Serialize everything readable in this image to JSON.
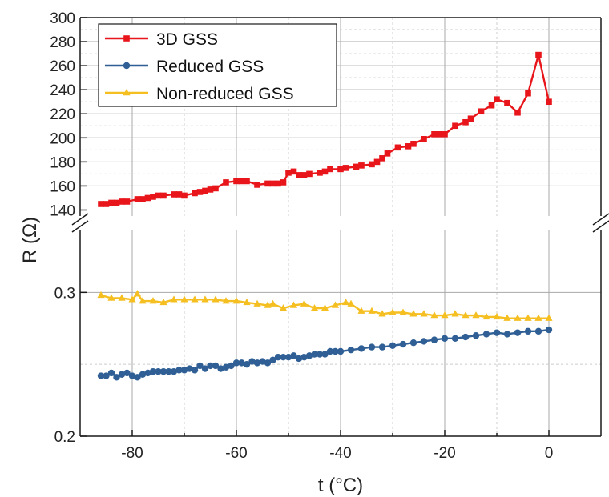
{
  "chart_data": {
    "type": "line",
    "xlabel": "t (°C)",
    "ylabel": "R (Ω)",
    "xlim": [
      -90,
      10
    ],
    "x_ticks": [
      -80,
      -60,
      -40,
      -20,
      0
    ],
    "broken_y_axis": true,
    "upper_ylim": [
      135,
      300
    ],
    "upper_y_ticks": [
      140,
      160,
      180,
      200,
      220,
      240,
      260,
      280,
      300
    ],
    "lower_ylim": [
      0.2,
      0.3436
    ],
    "lower_y_ticks": [
      0.2,
      0.3
    ],
    "grid": true,
    "legend_position": "top-left",
    "series": [
      {
        "name": "3D GSS",
        "color": "#e8161b",
        "marker": "square",
        "panel": "upper",
        "x": [
          -86,
          -85,
          -84,
          -83,
          -82,
          -81,
          -79,
          -78,
          -77,
          -76,
          -75,
          -74,
          -72,
          -71,
          -70,
          -68,
          -67,
          -66,
          -65,
          -64,
          -62,
          -60,
          -59,
          -58,
          -56,
          -54,
          -53,
          -52,
          -51,
          -50,
          -49,
          -48,
          -47,
          -46,
          -44,
          -43,
          -42,
          -40,
          -39,
          -37,
          -36,
          -34,
          -33,
          -32,
          -31,
          -29,
          -27,
          -26,
          -24,
          -22,
          -21,
          -20,
          -18,
          -16,
          -15,
          -13,
          -11,
          -10,
          -8,
          -6,
          -4,
          -2,
          0
        ],
        "y": [
          145,
          145,
          146,
          146,
          147,
          147,
          149,
          149,
          150,
          151,
          152,
          152,
          153,
          153,
          152,
          154,
          155,
          156,
          157,
          158,
          163,
          164,
          164,
          164,
          161,
          162,
          162,
          162,
          163,
          171,
          172,
          169,
          169,
          170,
          171,
          172,
          174,
          174,
          175,
          176,
          177,
          178,
          180,
          183,
          187,
          192,
          193,
          195,
          199,
          203,
          203,
          203,
          210,
          213,
          216,
          222,
          227,
          232,
          229,
          221,
          237,
          269,
          230
        ]
      },
      {
        "name": "Reduced GSS",
        "color": "#2f5f95",
        "marker": "circle",
        "panel": "lower",
        "x": [
          -86,
          -85,
          -84,
          -83,
          -82,
          -81,
          -80,
          -79,
          -78,
          -77,
          -76,
          -75,
          -74,
          -73,
          -72,
          -71,
          -70,
          -69,
          -68,
          -67,
          -66,
          -65,
          -64,
          -63,
          -62,
          -61,
          -60,
          -59,
          -58,
          -57,
          -56,
          -55,
          -54,
          -53,
          -52,
          -51,
          -50,
          -49,
          -48,
          -47,
          -46,
          -45,
          -44,
          -43,
          -42,
          -41,
          -40,
          -38,
          -36,
          -34,
          -32,
          -30,
          -28,
          -26,
          -24,
          -22,
          -20,
          -18,
          -16,
          -14,
          -12,
          -10,
          -8,
          -6,
          -4,
          -2,
          0
        ],
        "y": [
          0.242,
          0.242,
          0.244,
          0.241,
          0.243,
          0.244,
          0.242,
          0.241,
          0.243,
          0.244,
          0.245,
          0.245,
          0.245,
          0.245,
          0.245,
          0.246,
          0.246,
          0.247,
          0.246,
          0.249,
          0.247,
          0.249,
          0.249,
          0.247,
          0.248,
          0.249,
          0.251,
          0.251,
          0.25,
          0.252,
          0.251,
          0.252,
          0.251,
          0.253,
          0.255,
          0.255,
          0.255,
          0.256,
          0.254,
          0.255,
          0.256,
          0.257,
          0.257,
          0.257,
          0.259,
          0.259,
          0.259,
          0.26,
          0.261,
          0.262,
          0.262,
          0.263,
          0.264,
          0.265,
          0.266,
          0.267,
          0.268,
          0.268,
          0.269,
          0.27,
          0.271,
          0.272,
          0.271,
          0.272,
          0.273,
          0.273,
          0.274
        ]
      },
      {
        "name": "Non-reduced GSS",
        "color": "#f5bf21",
        "marker": "triangle",
        "panel": "lower",
        "x": [
          -86,
          -84,
          -82,
          -80,
          -79,
          -78,
          -76,
          -74,
          -72,
          -70,
          -68,
          -66,
          -64,
          -62,
          -60,
          -58,
          -56,
          -54,
          -53,
          -51,
          -49,
          -47,
          -45,
          -43,
          -41,
          -39,
          -38,
          -36,
          -34,
          -32,
          -30,
          -28,
          -26,
          -24,
          -22,
          -20,
          -18,
          -16,
          -14,
          -12,
          -10,
          -8,
          -6,
          -4,
          -2,
          0
        ],
        "y": [
          0.298,
          0.296,
          0.296,
          0.295,
          0.299,
          0.294,
          0.294,
          0.293,
          0.295,
          0.295,
          0.295,
          0.295,
          0.295,
          0.294,
          0.294,
          0.293,
          0.292,
          0.291,
          0.292,
          0.289,
          0.291,
          0.292,
          0.289,
          0.289,
          0.291,
          0.293,
          0.292,
          0.287,
          0.287,
          0.285,
          0.286,
          0.286,
          0.285,
          0.285,
          0.284,
          0.284,
          0.285,
          0.284,
          0.284,
          0.283,
          0.283,
          0.282,
          0.282,
          0.282,
          0.282,
          0.282
        ]
      }
    ]
  }
}
